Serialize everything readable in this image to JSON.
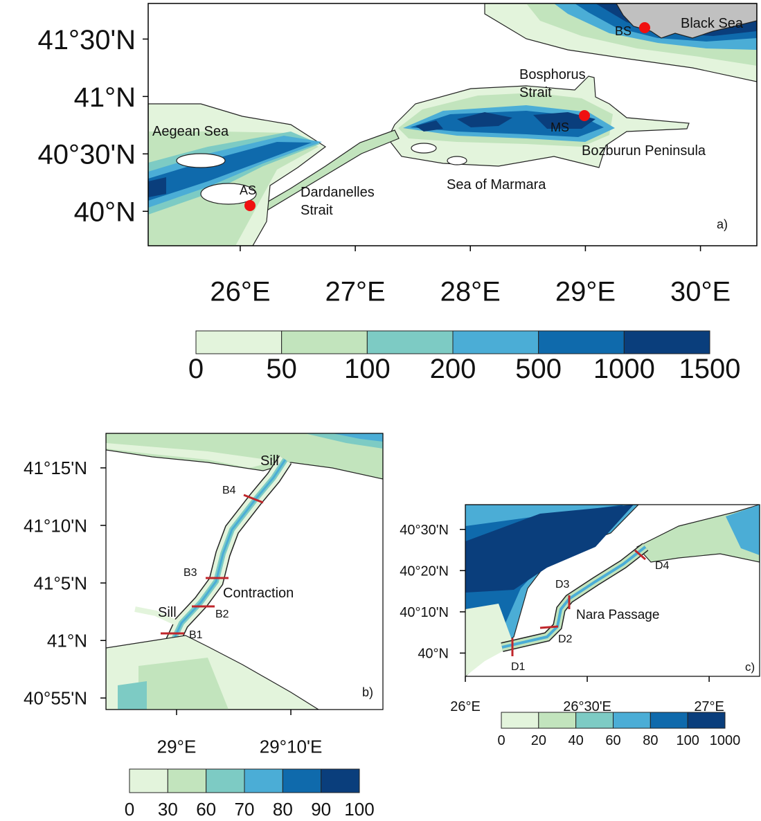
{
  "panels": [
    {
      "label": "a)",
      "xlim": [
        25.2,
        30.49
      ],
      "ylim": [
        39.7,
        41.81
      ],
      "xticks": [
        {
          "value": 26,
          "label": "26°E"
        },
        {
          "value": 27,
          "label": "27°E"
        },
        {
          "value": 28,
          "label": "28°E"
        },
        {
          "value": 29,
          "label": "29°E"
        },
        {
          "value": 30,
          "label": "30°E"
        }
      ],
      "yticks": [
        {
          "value": 40,
          "label": "40°N"
        },
        {
          "value": 40.5,
          "label": "40°30'N"
        },
        {
          "value": 41,
          "label": "41°N"
        },
        {
          "value": 41.5,
          "label": "41°30'N"
        }
      ],
      "places": [
        [
          "Black Sea"
        ],
        [
          "Bosphorus",
          "Strait"
        ],
        [
          "Aegean Sea"
        ],
        [
          "Bozburun Peninsula"
        ],
        [
          "Dardanelles",
          "Strait"
        ],
        [
          "Sea of Marmara"
        ]
      ],
      "stations": [
        "BS",
        "MS",
        "AS"
      ],
      "colorbar": {
        "levels": [
          0,
          50,
          100,
          200,
          500,
          1000,
          1500
        ],
        "colors": [
          "#e3f4dc",
          "#c2e4bd",
          "#7dcbc4",
          "#4badd6",
          "#0f6aac",
          "#0a3e7c"
        ]
      }
    },
    {
      "label": "b)",
      "xlim": [
        28.897,
        29.301
      ],
      "ylim": [
        40.9,
        41.3
      ],
      "xticks": [
        {
          "value": 29,
          "label": "29°E"
        },
        {
          "value": 29.1667,
          "label": "29°10'E"
        }
      ],
      "yticks": [
        {
          "value": 40.9167,
          "label": "40°55'N"
        },
        {
          "value": 41,
          "label": "41°N"
        },
        {
          "value": 41.0833,
          "label": "41°5'N"
        },
        {
          "value": 41.1667,
          "label": "41°10'N"
        },
        {
          "value": 41.25,
          "label": "41°15'N"
        }
      ],
      "places": [
        [
          "Sill"
        ],
        [
          "Contraction"
        ],
        [
          "Sill"
        ]
      ],
      "sections": [
        "B1",
        "B2",
        "B3",
        "B4"
      ],
      "colorbar": {
        "levels": [
          0,
          30,
          60,
          70,
          80,
          90,
          100
        ],
        "colors": [
          "#e3f4dc",
          "#c2e4bd",
          "#7dcbc4",
          "#4badd6",
          "#0f6aac",
          "#0a3e7c"
        ]
      }
    },
    {
      "label": "c)",
      "xlim": [
        26.0,
        27.207
      ],
      "ylim": [
        39.906,
        40.6
      ],
      "xticks": [
        {
          "value": 26,
          "label": "26°E"
        },
        {
          "value": 26.5,
          "label": "26°30'E"
        },
        {
          "value": 27,
          "label": "27°E"
        }
      ],
      "yticks": [
        {
          "value": 40,
          "label": "40°N"
        },
        {
          "value": 40.1667,
          "label": "40°10'N"
        },
        {
          "value": 40.3333,
          "label": "40°20'N"
        },
        {
          "value": 40.5,
          "label": "40°30'N"
        }
      ],
      "places": [
        [
          "Nara Passage"
        ]
      ],
      "sections": [
        "D1",
        "D2",
        "D3",
        "D4"
      ],
      "colorbar": {
        "levels": [
          0,
          20,
          40,
          60,
          80,
          100,
          1000
        ],
        "colors": [
          "#e3f4dc",
          "#c2e4bd",
          "#7dcbc4",
          "#4badd6",
          "#0f6aac",
          "#0a3e7c"
        ]
      }
    }
  ]
}
